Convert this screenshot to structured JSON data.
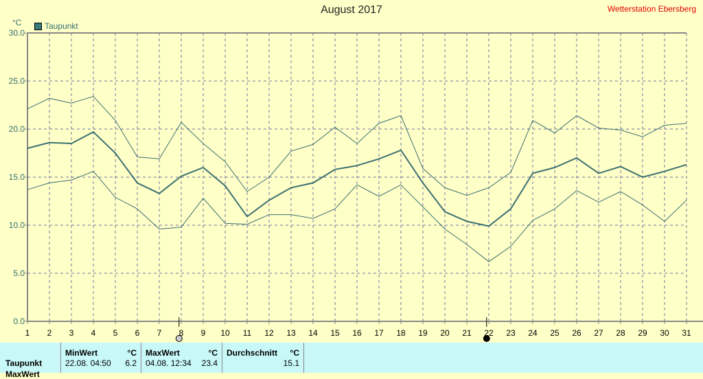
{
  "header": {
    "title": "August 2017",
    "station": "Wetterstation Ebersberg"
  },
  "chart_data": {
    "type": "line",
    "title": "August 2017",
    "ylabel": "°C",
    "ylim": [
      0,
      30
    ],
    "yticks": [
      "0.0",
      "5.0",
      "10.0",
      "15.0",
      "20.0",
      "25.0",
      "30.0"
    ],
    "x": [
      1,
      2,
      3,
      4,
      5,
      6,
      7,
      8,
      9,
      10,
      11,
      12,
      13,
      14,
      15,
      16,
      17,
      18,
      19,
      20,
      21,
      22,
      23,
      24,
      25,
      26,
      27,
      28,
      29,
      30,
      31
    ],
    "grid": true,
    "legend": "top-left",
    "legend_entries": [
      "Taupunkt"
    ],
    "series": [
      {
        "name": "Taupunkt",
        "color": "#3a7070",
        "values": [
          18.0,
          18.6,
          18.5,
          19.7,
          17.5,
          14.4,
          13.3,
          15.1,
          16.0,
          14.1,
          10.9,
          12.6,
          13.9,
          14.4,
          15.8,
          16.2,
          16.9,
          17.8,
          14.4,
          11.4,
          10.4,
          9.9,
          11.7,
          15.4,
          16.0,
          17.0,
          15.4,
          16.1,
          15.0,
          15.6,
          16.3
        ]
      },
      {
        "color": "#3a7070",
        "values": [
          22.1,
          23.2,
          22.7,
          23.4,
          20.9,
          17.1,
          16.9,
          20.7,
          18.5,
          16.6,
          13.5,
          15.0,
          17.7,
          18.4,
          20.2,
          18.5,
          20.6,
          21.4,
          15.9,
          13.9,
          13.1,
          13.9,
          15.5,
          20.9,
          19.6,
          21.4,
          20.1,
          19.9,
          19.2,
          20.4,
          20.6
        ]
      },
      {
        "color": "#3a7070",
        "values": [
          13.7,
          14.4,
          14.7,
          15.6,
          12.9,
          11.7,
          9.6,
          9.8,
          12.8,
          10.2,
          10.1,
          11.1,
          11.1,
          10.7,
          11.7,
          14.2,
          13.0,
          14.2,
          11.9,
          9.6,
          8.0,
          6.2,
          7.8,
          10.5,
          11.7,
          13.6,
          12.4,
          13.5,
          12.1,
          10.4,
          12.6
        ]
      }
    ],
    "markers": [
      {
        "x": 7.9,
        "type": "open-circle"
      },
      {
        "x": 21.9,
        "type": "filled-circle"
      }
    ]
  },
  "table": {
    "headers": {
      "min": "MinWert",
      "max": "MaxWert",
      "avg": "Durchschnitt",
      "unit": "°C"
    },
    "rows": [
      {
        "label": "Taupunkt",
        "min_time": "22.08.  04:50",
        "min": "6.2",
        "max_time": "04.08.  12:34",
        "max": "23.4",
        "avg": "15.1"
      }
    ],
    "row2_label": "MaxWert"
  }
}
